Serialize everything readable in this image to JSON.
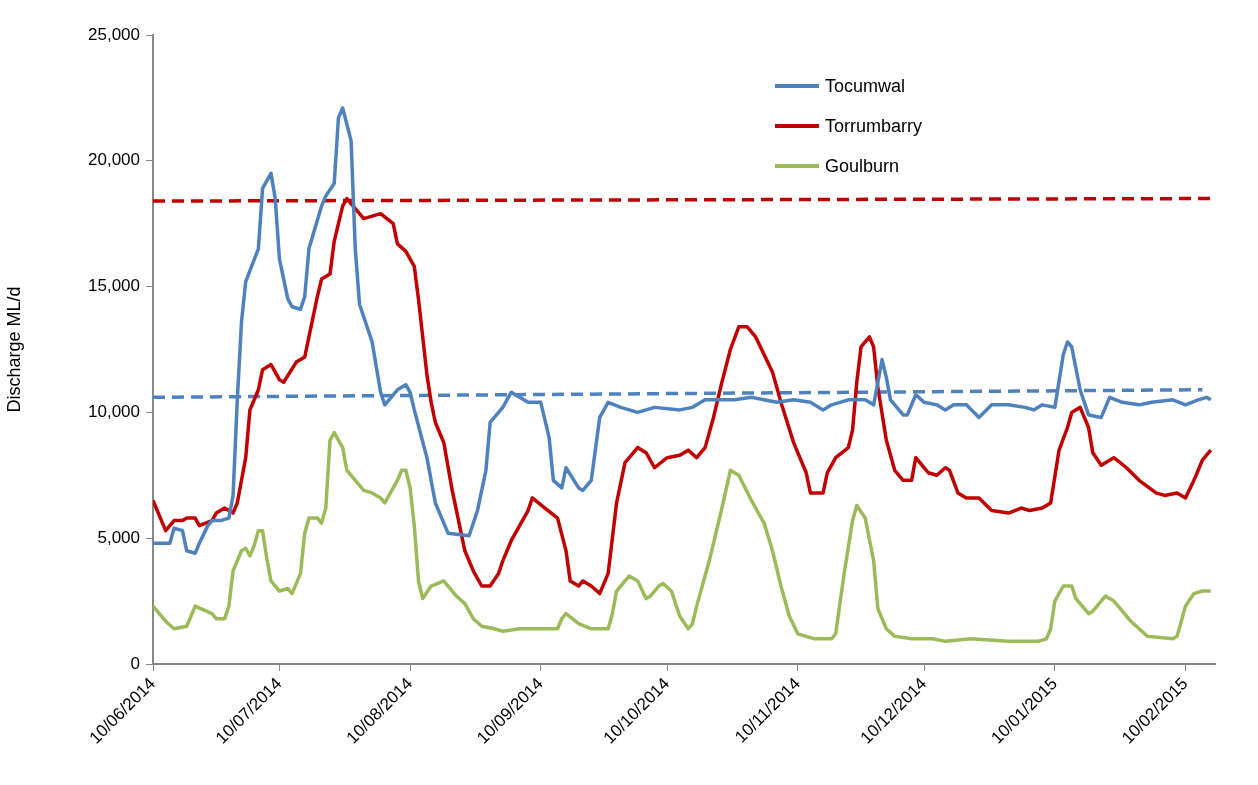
{
  "chart_data": {
    "type": "line",
    "ylabel": "Discharge ML/d",
    "xlim": [
      "2014-06-10",
      "2015-02-17"
    ],
    "xticks": [
      {
        "value": "2014-06-10",
        "label": "10/06/2014"
      },
      {
        "value": "2014-07-10",
        "label": "10/07/2014"
      },
      {
        "value": "2014-08-10",
        "label": "10/08/2014"
      },
      {
        "value": "2014-09-10",
        "label": "10/09/2014"
      },
      {
        "value": "2014-10-10",
        "label": "10/10/2014"
      },
      {
        "value": "2014-11-10",
        "label": "10/11/2014"
      },
      {
        "value": "2014-12-10",
        "label": "10/12/2014"
      },
      {
        "value": "2015-01-10",
        "label": "10/01/2015"
      },
      {
        "value": "2015-02-10",
        "label": "10/02/2015"
      }
    ],
    "ylim": [
      0,
      25000
    ],
    "yticks": [
      0,
      {
        "value": 5000,
        "label": "5,000"
      },
      {
        "value": 10000,
        "label": "10,000"
      },
      {
        "value": 15000,
        "label": "15,000"
      },
      {
        "value": 20000,
        "label": "20,000"
      },
      {
        "value": 25000,
        "label": "25,000"
      }
    ],
    "grid": false,
    "legend": "top right",
    "marker": "none",
    "line_style": "solid",
    "series": [
      {
        "name": "Tocumwal",
        "color": "#4f81bd",
        "x": [
          "2014-06-10",
          "2014-06-14",
          "2014-06-15",
          "2014-06-17",
          "2014-06-18",
          "2014-06-20",
          "2014-06-21",
          "2014-06-23",
          "2014-06-24",
          "2014-06-26",
          "2014-06-28",
          "2014-06-29",
          "2014-06-30",
          "2014-07-01",
          "2014-07-02",
          "2014-07-05",
          "2014-07-06",
          "2014-07-08",
          "2014-07-09",
          "2014-07-10",
          "2014-07-12",
          "2014-07-13",
          "2014-07-15",
          "2014-07-16",
          "2014-07-17",
          "2014-07-20",
          "2014-07-21",
          "2014-07-23",
          "2014-07-24",
          "2014-07-25",
          "2014-07-27",
          "2014-07-28",
          "2014-07-29",
          "2014-08-01",
          "2014-08-03",
          "2014-08-04",
          "2014-08-07",
          "2014-08-09",
          "2014-08-10",
          "2014-08-11",
          "2014-08-14",
          "2014-08-16",
          "2014-08-19",
          "2014-08-24",
          "2014-08-26",
          "2014-08-28",
          "2014-08-29",
          "2014-09-01",
          "2014-09-03",
          "2014-09-07",
          "2014-09-10",
          "2014-09-12",
          "2014-09-13",
          "2014-09-15",
          "2014-09-16",
          "2014-09-19",
          "2014-09-20",
          "2014-09-22",
          "2014-09-24",
          "2014-09-26",
          "2014-09-29",
          "2014-10-03",
          "2014-10-07",
          "2014-10-13",
          "2014-10-16",
          "2014-10-19",
          "2014-10-26",
          "2014-10-30",
          "2014-11-05",
          "2014-11-09",
          "2014-11-13",
          "2014-11-16",
          "2014-11-18",
          "2014-11-22",
          "2014-11-26",
          "2014-11-28",
          "2014-11-29",
          "2014-11-30",
          "2014-12-01",
          "2014-12-02",
          "2014-12-05",
          "2014-12-06",
          "2014-12-08",
          "2014-12-10",
          "2014-12-13",
          "2014-12-15",
          "2014-12-17",
          "2014-12-20",
          "2014-12-23",
          "2014-12-26",
          "2014-12-30",
          "2015-01-03",
          "2015-01-05",
          "2015-01-07",
          "2015-01-10",
          "2015-01-12",
          "2015-01-13",
          "2015-01-14",
          "2015-01-16",
          "2015-01-18",
          "2015-01-21",
          "2015-01-23",
          "2015-01-26",
          "2015-01-30",
          "2015-02-02",
          "2015-02-07",
          "2015-02-10",
          "2015-02-13",
          "2015-02-15",
          "2015-02-16"
        ],
        "values": [
          4800,
          4800,
          5400,
          5300,
          4500,
          4400,
          4800,
          5500,
          5700,
          5700,
          5800,
          6700,
          10500,
          13600,
          15200,
          16500,
          18900,
          19500,
          18500,
          16100,
          14500,
          14200,
          14100,
          14600,
          16500,
          18200,
          18600,
          19100,
          21700,
          22100,
          20800,
          16500,
          14300,
          12800,
          10800,
          10300,
          10900,
          11100,
          10800,
          10100,
          8200,
          6400,
          5200,
          5100,
          6100,
          7700,
          9600,
          10200,
          10800,
          10400,
          10400,
          9000,
          7300,
          7000,
          7800,
          7000,
          6900,
          7300,
          9800,
          10400,
          10200,
          10000,
          10200,
          10100,
          10200,
          10500,
          10500,
          10600,
          10400,
          10500,
          10400,
          10100,
          10300,
          10500,
          10500,
          10300,
          11200,
          12100,
          11400,
          10500,
          9900,
          9900,
          10700,
          10400,
          10300,
          10100,
          10300,
          10300,
          9800,
          10300,
          10300,
          10200,
          10100,
          10300,
          10200,
          12300,
          12800,
          12600,
          10900,
          9900,
          9800,
          10600,
          10400,
          10300,
          10400,
          10500,
          10300,
          10500,
          10600,
          10500
        ]
      },
      {
        "name": "Torrumbarry",
        "color": "#c00000",
        "x": [
          "2014-06-10",
          "2014-06-13",
          "2014-06-15",
          "2014-06-17",
          "2014-06-18",
          "2014-06-20",
          "2014-06-21",
          "2014-06-24",
          "2014-06-25",
          "2014-06-27",
          "2014-06-29",
          "2014-06-30",
          "2014-07-02",
          "2014-07-03",
          "2014-07-05",
          "2014-07-06",
          "2014-07-08",
          "2014-07-10",
          "2014-07-11",
          "2014-07-14",
          "2014-07-16",
          "2014-07-17",
          "2014-07-19",
          "2014-07-20",
          "2014-07-22",
          "2014-07-23",
          "2014-07-25",
          "2014-07-26",
          "2014-07-30",
          "2014-08-03",
          "2014-08-06",
          "2014-08-07",
          "2014-08-09",
          "2014-08-11",
          "2014-08-12",
          "2014-08-13",
          "2014-08-14",
          "2014-08-15",
          "2014-08-16",
          "2014-08-18",
          "2014-08-20",
          "2014-08-22",
          "2014-08-23",
          "2014-08-25",
          "2014-08-27",
          "2014-08-29",
          "2014-08-31",
          "2014-09-01",
          "2014-09-03",
          "2014-09-05",
          "2014-09-07",
          "2014-09-08",
          "2014-09-11",
          "2014-09-14",
          "2014-09-16",
          "2014-09-17",
          "2014-09-19",
          "2014-09-20",
          "2014-09-22",
          "2014-09-24",
          "2014-09-26",
          "2014-09-28",
          "2014-09-30",
          "2014-10-03",
          "2014-10-05",
          "2014-10-07",
          "2014-10-10",
          "2014-10-13",
          "2014-10-15",
          "2014-10-17",
          "2014-10-19",
          "2014-10-21",
          "2014-10-23",
          "2014-10-25",
          "2014-10-27",
          "2014-10-29",
          "2014-10-31",
          "2014-11-02",
          "2014-11-04",
          "2014-11-06",
          "2014-11-09",
          "2014-11-12",
          "2014-11-13",
          "2014-11-16",
          "2014-11-17",
          "2014-11-19",
          "2014-11-22",
          "2014-11-23",
          "2014-11-24",
          "2014-11-25",
          "2014-11-27",
          "2014-11-28",
          "2014-11-29",
          "2014-12-01",
          "2014-12-03",
          "2014-12-05",
          "2014-12-07",
          "2014-12-08",
          "2014-12-11",
          "2014-12-13",
          "2014-12-15",
          "2014-12-16",
          "2014-12-18",
          "2014-12-20",
          "2014-12-23",
          "2014-12-26",
          "2014-12-30",
          "2015-01-02",
          "2015-01-04",
          "2015-01-07",
          "2015-01-09",
          "2015-01-11",
          "2015-01-13",
          "2015-01-14",
          "2015-01-16",
          "2015-01-18",
          "2015-01-19",
          "2015-01-21",
          "2015-01-24",
          "2015-01-27",
          "2015-01-30",
          "2015-02-03",
          "2015-02-05",
          "2015-02-08",
          "2015-02-10",
          "2015-02-12",
          "2015-02-14",
          "2015-02-16"
        ],
        "values": [
          6500,
          5300,
          5700,
          5700,
          5800,
          5800,
          5500,
          5700,
          6000,
          6200,
          6000,
          6400,
          8200,
          10100,
          10900,
          11700,
          11900,
          11300,
          11200,
          12000,
          12200,
          13000,
          14600,
          15300,
          15500,
          16800,
          18200,
          18500,
          17700,
          17900,
          17500,
          16700,
          16400,
          15800,
          14500,
          13000,
          11500,
          10400,
          9600,
          8800,
          6900,
          5300,
          4500,
          3700,
          3100,
          3100,
          3600,
          4100,
          4900,
          5500,
          6100,
          6600,
          6200,
          5800,
          4500,
          3300,
          3100,
          3300,
          3100,
          2800,
          3600,
          6400,
          8000,
          8600,
          8400,
          7800,
          8200,
          8300,
          8500,
          8200,
          8600,
          9800,
          11200,
          12500,
          13400,
          13400,
          13000,
          12300,
          11600,
          10400,
          8800,
          7600,
          6800,
          6800,
          7600,
          8200,
          8600,
          9300,
          11200,
          12600,
          13000,
          12600,
          11000,
          8900,
          7700,
          7300,
          7300,
          8200,
          7600,
          7500,
          7800,
          7700,
          6800,
          6600,
          6600,
          6100,
          6000,
          6200,
          6100,
          6200,
          6400,
          8500,
          9400,
          10000,
          10200,
          9400,
          8400,
          7900,
          8200,
          7800,
          7300,
          6800,
          6700,
          6800,
          6600,
          7300,
          8100,
          8500
        ]
      },
      {
        "name": "Goulburn",
        "color": "#9bbb59",
        "x": [
          "2014-06-10",
          "2014-06-13",
          "2014-06-15",
          "2014-06-18",
          "2014-06-20",
          "2014-06-24",
          "2014-06-25",
          "2014-06-27",
          "2014-06-28",
          "2014-06-29",
          "2014-07-01",
          "2014-07-02",
          "2014-07-03",
          "2014-07-04",
          "2014-07-05",
          "2014-07-06",
          "2014-07-07",
          "2014-07-08",
          "2014-07-10",
          "2014-07-12",
          "2014-07-13",
          "2014-07-15",
          "2014-07-16",
          "2014-07-17",
          "2014-07-19",
          "2014-07-20",
          "2014-07-21",
          "2014-07-22",
          "2014-07-23",
          "2014-07-25",
          "2014-07-26",
          "2014-07-28",
          "2014-07-30",
          "2014-08-01",
          "2014-08-03",
          "2014-08-04",
          "2014-08-05",
          "2014-08-07",
          "2014-08-08",
          "2014-08-09",
          "2014-08-10",
          "2014-08-11",
          "2014-08-12",
          "2014-08-13",
          "2014-08-15",
          "2014-08-18",
          "2014-08-21",
          "2014-08-23",
          "2014-08-25",
          "2014-08-27",
          "2014-08-30",
          "2014-09-01",
          "2014-09-05",
          "2014-09-08",
          "2014-09-10",
          "2014-09-14",
          "2014-09-15",
          "2014-09-16",
          "2014-09-19",
          "2014-09-22",
          "2014-09-26",
          "2014-09-27",
          "2014-09-28",
          "2014-10-01",
          "2014-10-03",
          "2014-10-05",
          "2014-10-06",
          "2014-10-08",
          "2014-10-09",
          "2014-10-11",
          "2014-10-13",
          "2014-10-15",
          "2014-10-16",
          "2014-10-17",
          "2014-10-20",
          "2014-10-23",
          "2014-10-25",
          "2014-10-27",
          "2014-10-30",
          "2014-11-02",
          "2014-11-04",
          "2014-11-06",
          "2014-11-08",
          "2014-11-10",
          "2014-11-14",
          "2014-11-18",
          "2014-11-19",
          "2014-11-21",
          "2014-11-23",
          "2014-11-24",
          "2014-11-26",
          "2014-11-28",
          "2014-11-29",
          "2014-12-01",
          "2014-12-03",
          "2014-12-07",
          "2014-12-12",
          "2014-12-15",
          "2014-12-21",
          "2014-12-30",
          "2015-01-06",
          "2015-01-08",
          "2015-01-09",
          "2015-01-10",
          "2015-01-12",
          "2015-01-14",
          "2015-01-15",
          "2015-01-18",
          "2015-01-19",
          "2015-01-22",
          "2015-01-24",
          "2015-01-28",
          "2015-02-01",
          "2015-02-07",
          "2015-02-08",
          "2015-02-10",
          "2015-02-12",
          "2015-02-14",
          "2015-02-16"
        ],
        "values": [
          2300,
          1700,
          1400,
          1500,
          2300,
          2000,
          1800,
          1800,
          2300,
          3700,
          4500,
          4600,
          4300,
          4700,
          5300,
          5300,
          4200,
          3300,
          2900,
          3000,
          2800,
          3600,
          5200,
          5800,
          5800,
          5600,
          6200,
          8900,
          9200,
          8600,
          7700,
          7300,
          6900,
          6800,
          6600,
          6400,
          6700,
          7300,
          7700,
          7700,
          7000,
          5500,
          3300,
          2600,
          3100,
          3300,
          2700,
          2400,
          1800,
          1500,
          1400,
          1300,
          1400,
          1400,
          1400,
          1400,
          1800,
          2000,
          1600,
          1400,
          1400,
          2000,
          2900,
          3500,
          3300,
          2600,
          2700,
          3100,
          3200,
          2900,
          1900,
          1400,
          1600,
          2300,
          4100,
          6200,
          7700,
          7500,
          6500,
          5600,
          4500,
          3100,
          1900,
          1200,
          1000,
          1000,
          1200,
          3600,
          5700,
          6300,
          5800,
          4100,
          2200,
          1400,
          1100,
          1000,
          1000,
          900,
          1000,
          900,
          900,
          1000,
          1400,
          2500,
          3100,
          3100,
          2600,
          2000,
          2100,
          2700,
          2500,
          1700,
          1100,
          1000,
          1100,
          2300,
          2800,
          2900,
          2900
        ]
      },
      {
        "color": "#c00000",
        "line_style": "dashed",
        "x": [
          "2014-06-10",
          "2015-02-16"
        ],
        "values": [
          18400,
          18500
        ]
      },
      {
        "color": "#4f81bd",
        "line_style": "dashed",
        "x": [
          "2014-06-10",
          "2015-02-14"
        ],
        "values": [
          10600,
          10900
        ]
      }
    ]
  }
}
